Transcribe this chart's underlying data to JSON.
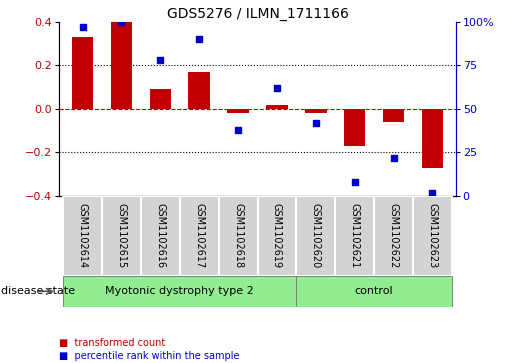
{
  "title": "GDS5276 / ILMN_1711166",
  "samples": [
    "GSM1102614",
    "GSM1102615",
    "GSM1102616",
    "GSM1102617",
    "GSM1102618",
    "GSM1102619",
    "GSM1102620",
    "GSM1102621",
    "GSM1102622",
    "GSM1102623"
  ],
  "bar_values": [
    0.33,
    0.4,
    0.09,
    0.17,
    -0.02,
    0.02,
    -0.02,
    -0.17,
    -0.06,
    -0.27
  ],
  "percentile_values": [
    97,
    100,
    78,
    90,
    38,
    62,
    42,
    8,
    22,
    2
  ],
  "bar_color": "#c00000",
  "dot_color": "#0000cc",
  "ylim_left": [
    -0.4,
    0.4
  ],
  "ylim_right": [
    0,
    100
  ],
  "yticks_left": [
    -0.4,
    -0.2,
    0.0,
    0.2,
    0.4
  ],
  "yticks_right": [
    0,
    25,
    50,
    75,
    100
  ],
  "ytick_labels_right": [
    "0",
    "25",
    "50",
    "75",
    "100%"
  ],
  "dotted_lines": [
    0.2,
    -0.2
  ],
  "group_defs": [
    {
      "start": 0,
      "end": 5,
      "label": "Myotonic dystrophy type 2",
      "color": "#90EE90"
    },
    {
      "start": 6,
      "end": 9,
      "label": "control",
      "color": "#90EE90"
    }
  ],
  "disease_state_label": "disease state",
  "legend_items": [
    {
      "label": "transformed count",
      "color": "#c00000"
    },
    {
      "label": "percentile rank within the sample",
      "color": "#0000cc"
    }
  ],
  "background_color": "#ffffff",
  "sample_box_color": "#d3d3d3",
  "title_fontsize": 10,
  "axis_fontsize": 8,
  "label_fontsize": 7,
  "group_fontsize": 8
}
